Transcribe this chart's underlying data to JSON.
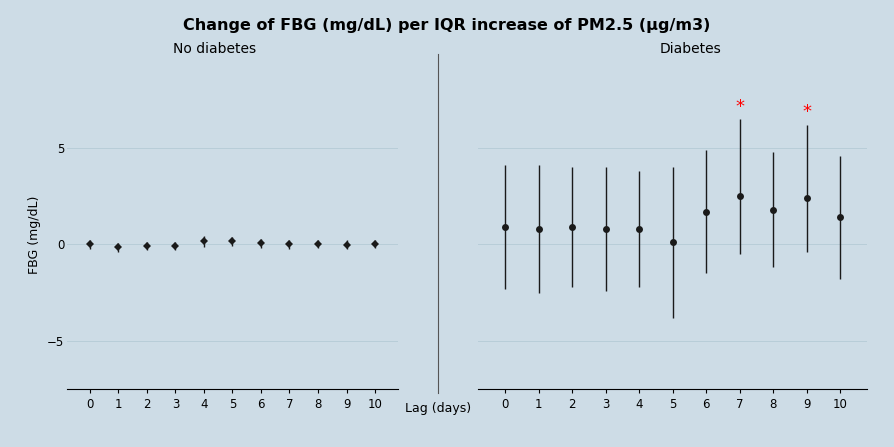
{
  "title": "Change of FBG (mg/dL) per IQR increase of PM2.5 (μg/m3)",
  "subtitle_left": "No diabetes",
  "subtitle_right": "Diabetes",
  "xlabel": "Lag (days)",
  "ylabel": "FBG (mg/dL)",
  "background_color": "#cddce6",
  "ylim": [
    -7.5,
    8.5
  ],
  "yticks": [
    -5,
    0,
    5
  ],
  "no_diabetes": {
    "lags": [
      0,
      1,
      2,
      3,
      4,
      5,
      6,
      7,
      8,
      9,
      10
    ],
    "centers": [
      0.0,
      -0.15,
      -0.1,
      -0.1,
      0.15,
      0.15,
      0.05,
      0.0,
      0.02,
      -0.02,
      0.02
    ],
    "lower": [
      -0.22,
      -0.38,
      -0.32,
      -0.32,
      -0.12,
      -0.08,
      -0.18,
      -0.22,
      -0.2,
      -0.24,
      -0.2
    ],
    "upper": [
      0.22,
      0.08,
      0.12,
      0.12,
      0.42,
      0.38,
      0.28,
      0.22,
      0.24,
      0.2,
      0.24
    ]
  },
  "diabetes": {
    "lags": [
      0,
      1,
      2,
      3,
      4,
      5,
      6,
      7,
      8,
      9,
      10
    ],
    "centers": [
      0.9,
      0.8,
      0.9,
      0.8,
      0.8,
      0.1,
      1.7,
      2.5,
      1.8,
      2.4,
      1.4
    ],
    "lower": [
      -2.3,
      -2.5,
      -2.2,
      -2.4,
      -2.2,
      -3.8,
      -1.5,
      -0.5,
      -1.2,
      -0.4,
      -1.8
    ],
    "upper": [
      4.1,
      4.1,
      4.0,
      4.0,
      3.8,
      4.0,
      4.9,
      6.5,
      4.8,
      6.2,
      4.6
    ]
  },
  "significant_lags": [
    7,
    9
  ],
  "marker_color": "#1a1a1a",
  "line_color": "#1a1a1a",
  "grid_color": "#b8cdd8",
  "star_color": "red",
  "title_fontsize": 11.5,
  "subtitle_fontsize": 10,
  "axis_label_fontsize": 9,
  "tick_fontsize": 8.5
}
